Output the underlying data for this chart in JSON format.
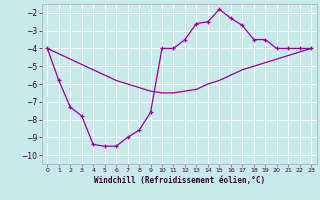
{
  "xlabel": "Windchill (Refroidissement éolien,°C)",
  "background_color": "#c8eaea",
  "grid_color": "#ffffff",
  "line_color": "#990099",
  "x_hours": [
    0,
    1,
    2,
    3,
    4,
    5,
    6,
    7,
    8,
    9,
    10,
    11,
    12,
    13,
    14,
    15,
    16,
    17,
    18,
    19,
    20,
    21,
    22,
    23
  ],
  "windchill_values": [
    -4.0,
    -5.8,
    -7.3,
    -7.8,
    -9.4,
    -9.5,
    -9.5,
    -9.0,
    -8.6,
    -7.6,
    -4.0,
    -4.0,
    -3.5,
    -2.6,
    -2.5,
    -1.8,
    -2.3,
    -2.7,
    -3.5,
    -3.5,
    -4.0,
    -4.0,
    -4.0,
    -4.0
  ],
  "temp_values": [
    -4.0,
    -4.3,
    -4.6,
    -4.9,
    -5.2,
    -5.5,
    -5.8,
    -6.0,
    -6.2,
    -6.4,
    -6.5,
    -6.5,
    -6.4,
    -6.3,
    -6.0,
    -5.8,
    -5.5,
    -5.2,
    -5.0,
    -4.8,
    -4.6,
    -4.4,
    -4.2,
    -4.0
  ],
  "ylim": [
    -10.5,
    -1.5
  ],
  "yticks": [
    -10,
    -9,
    -8,
    -7,
    -6,
    -5,
    -4,
    -3,
    -2
  ],
  "xlim": [
    -0.5,
    23.5
  ],
  "xtick_labels": [
    "0",
    "1",
    "2",
    "3",
    "4",
    "5",
    "6",
    "7",
    "8",
    "9",
    "10",
    "11",
    "12",
    "13",
    "14",
    "15",
    "16",
    "17",
    "18",
    "19",
    "20",
    "21",
    "22",
    "23"
  ]
}
